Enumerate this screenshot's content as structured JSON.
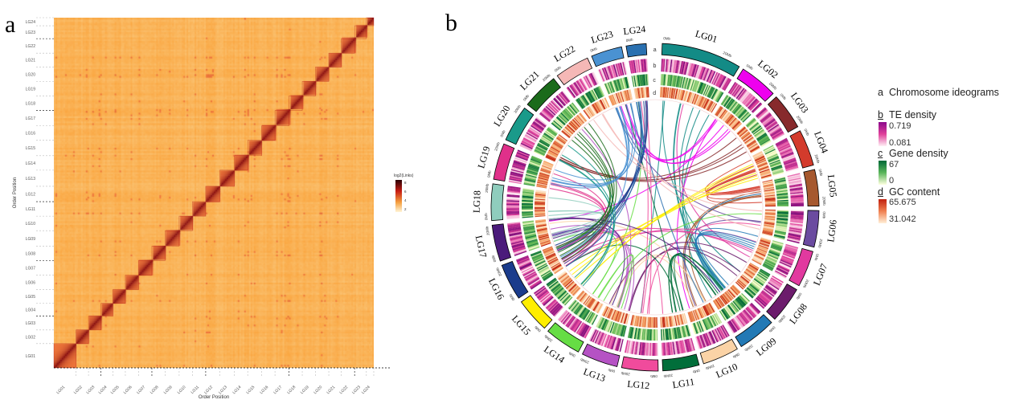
{
  "panels": {
    "a": "a",
    "b": "b"
  },
  "chart_data": [
    {
      "type": "heatmap",
      "title": "",
      "xlabel": "Order Position",
      "ylabel": "Order Position",
      "categories": [
        "LG01",
        "LG02",
        "LG03",
        "LG04",
        "LG05",
        "LG06",
        "LG07",
        "LG08",
        "LG09",
        "LG10",
        "LG11",
        "LG12",
        "LG13",
        "LG14",
        "LG15",
        "LG16",
        "LG17",
        "LG18",
        "LG19",
        "LG20",
        "LG21",
        "LG22",
        "LG23",
        "LG24"
      ],
      "legend": {
        "title": "log2(Links)",
        "ticks": [
          "8",
          "6",
          "4",
          "2"
        ],
        "placement": "right"
      },
      "colors": {
        "low": "#fff5d6",
        "mid": "#f5a040",
        "high": "#c81e14",
        "max": "#3a0008"
      }
    },
    {
      "type": "circos",
      "chromosomes": [
        {
          "name": "LG01",
          "color": "#138b86"
        },
        {
          "name": "LG02",
          "color": "#ee00ee"
        },
        {
          "name": "LG03",
          "color": "#872a2c"
        },
        {
          "name": "LG04",
          "color": "#d33b2c"
        },
        {
          "name": "LG05",
          "color": "#a6582e"
        },
        {
          "name": "LG06",
          "color": "#6b4ba0"
        },
        {
          "name": "LG07",
          "color": "#e1399f"
        },
        {
          "name": "LG08",
          "color": "#6c1c6c"
        },
        {
          "name": "LG09",
          "color": "#2279b5"
        },
        {
          "name": "LG10",
          "color": "#fbd3a6"
        },
        {
          "name": "LG11",
          "color": "#016e3a"
        },
        {
          "name": "LG12",
          "color": "#f04b9c"
        },
        {
          "name": "LG13",
          "color": "#b552c4"
        },
        {
          "name": "LG14",
          "color": "#66dd44"
        },
        {
          "name": "LG15",
          "color": "#ffee00"
        },
        {
          "name": "LG16",
          "color": "#1b3c8c"
        },
        {
          "name": "LG17",
          "color": "#4b1b7b"
        },
        {
          "name": "LG18",
          "color": "#8fcdbd"
        },
        {
          "name": "LG19",
          "color": "#e0308a"
        },
        {
          "name": "LG20",
          "color": "#1a9a8a"
        },
        {
          "name": "LG21",
          "color": "#1b6b1b"
        },
        {
          "name": "LG22",
          "color": "#f5b8b6"
        },
        {
          "name": "LG23",
          "color": "#4a92d2"
        },
        {
          "name": "LG24",
          "color": "#2a70b0"
        }
      ],
      "tick_labels": [
        "0Mb",
        "20Mb"
      ],
      "track_letters": [
        "a",
        "b",
        "c",
        "d"
      ],
      "legend": {
        "a": {
          "letter": "a",
          "label": "Chromosome ideograms"
        },
        "b": {
          "letter": "b",
          "label": "TE density",
          "max": "0.719",
          "min": "0.081",
          "colors": [
            "#8b0a8b",
            "#fff0f5"
          ]
        },
        "c": {
          "letter": "c",
          "label": "Gene density",
          "max": "67",
          "min": "0",
          "colors": [
            "#006837",
            "#ffffe0"
          ]
        },
        "d": {
          "letter": "d",
          "label": "GC content",
          "max": "65.675",
          "min": "31.042",
          "colors": [
            "#c0200e",
            "#fff0d8"
          ]
        }
      }
    }
  ]
}
